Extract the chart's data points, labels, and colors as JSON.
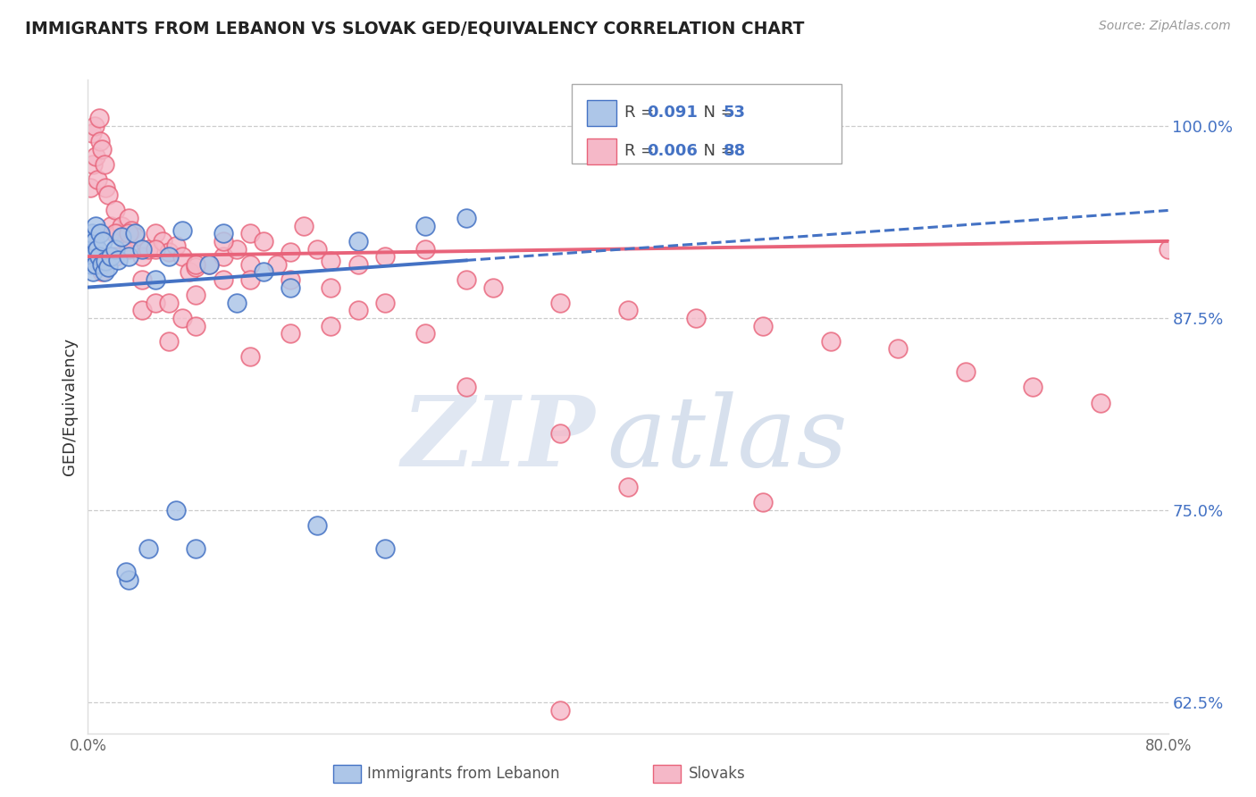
{
  "title": "IMMIGRANTS FROM LEBANON VS SLOVAK GED/EQUIVALENCY CORRELATION CHART",
  "source_text": "Source: ZipAtlas.com",
  "ylabel": "GED/Equivalency",
  "xlim": [
    0.0,
    80.0
  ],
  "ylim": [
    60.5,
    103.0
  ],
  "y_ticks": [
    62.5,
    75.0,
    87.5,
    100.0
  ],
  "blue_color": "#4472c4",
  "pink_color": "#e8637a",
  "blue_scatter_face": "#adc6e8",
  "pink_scatter_face": "#f5b8c8",
  "lebanon_x": [
    0.1,
    0.15,
    0.2,
    0.25,
    0.3,
    0.35,
    0.4,
    0.5,
    0.55,
    0.6,
    0.7,
    0.8,
    0.9,
    1.0,
    1.1,
    1.2,
    1.3,
    1.5,
    1.7,
    2.0,
    2.2,
    2.5,
    3.0,
    3.5,
    4.0,
    5.0,
    6.0,
    7.0,
    8.0,
    9.0,
    10.0,
    11.0,
    13.0,
    15.0,
    17.0,
    20.0,
    22.0,
    25.0,
    28.0,
    3.0,
    4.5,
    6.5,
    2.8
  ],
  "lebanon_y": [
    91.5,
    92.5,
    92.0,
    91.0,
    93.0,
    90.5,
    91.8,
    92.5,
    91.0,
    93.5,
    92.0,
    91.5,
    93.0,
    91.0,
    92.5,
    90.5,
    91.2,
    90.8,
    91.5,
    92.0,
    91.3,
    92.8,
    91.5,
    93.0,
    92.0,
    90.0,
    91.5,
    93.2,
    72.5,
    91.0,
    93.0,
    88.5,
    90.5,
    89.5,
    74.0,
    92.5,
    72.5,
    93.5,
    94.0,
    70.5,
    72.5,
    75.0,
    71.0
  ],
  "slovak_x": [
    0.2,
    0.3,
    0.4,
    0.5,
    0.6,
    0.7,
    0.8,
    0.9,
    1.0,
    1.2,
    1.3,
    1.5,
    1.7,
    2.0,
    2.2,
    2.5,
    2.8,
    3.0,
    3.2,
    3.5,
    4.0,
    4.5,
    5.0,
    5.5,
    6.0,
    6.5,
    7.0,
    7.5,
    8.0,
    9.0,
    10.0,
    11.0,
    12.0,
    13.0,
    14.0,
    15.0,
    16.0,
    17.0,
    18.0,
    20.0,
    22.0,
    25.0,
    28.0,
    30.0,
    35.0,
    40.0,
    45.0,
    50.0,
    55.0,
    60.0,
    65.0,
    70.0,
    75.0,
    80.0,
    1.5,
    2.0,
    3.0,
    4.0,
    5.0,
    6.0,
    7.0,
    8.0,
    10.0,
    12.0,
    15.0,
    20.0,
    4.0,
    6.0,
    8.0,
    10.0,
    12.0,
    15.0,
    18.0,
    22.0,
    28.0,
    35.0,
    40.0,
    50.0,
    35.0,
    25.0,
    18.0,
    12.0,
    8.0,
    5.0,
    3.0,
    2.0,
    1.0
  ],
  "slovak_y": [
    96.0,
    99.5,
    97.5,
    100.0,
    98.0,
    96.5,
    100.5,
    99.0,
    98.5,
    97.5,
    96.0,
    95.5,
    93.5,
    94.5,
    93.0,
    93.5,
    92.5,
    94.0,
    93.2,
    92.8,
    91.5,
    92.0,
    93.0,
    92.5,
    91.8,
    92.2,
    91.5,
    90.5,
    90.8,
    91.0,
    91.5,
    92.0,
    93.0,
    92.5,
    91.0,
    91.8,
    93.5,
    92.0,
    91.2,
    91.0,
    91.5,
    92.0,
    90.0,
    89.5,
    88.5,
    88.0,
    87.5,
    87.0,
    86.0,
    85.5,
    84.0,
    83.0,
    82.0,
    92.0,
    91.5,
    93.0,
    92.0,
    88.0,
    88.5,
    86.0,
    87.5,
    89.0,
    90.0,
    85.0,
    86.5,
    88.0,
    90.0,
    88.5,
    87.0,
    92.5,
    91.0,
    90.0,
    89.5,
    88.5,
    83.0,
    80.0,
    76.5,
    75.5,
    62.0,
    86.5,
    87.0,
    90.0,
    91.0,
    92.0,
    93.0,
    91.5,
    90.5
  ],
  "leb_trend_x0": 0.0,
  "leb_trend_y0": 89.5,
  "leb_trend_x1": 80.0,
  "leb_trend_y1": 94.5,
  "slo_trend_x0": 0.0,
  "slo_trend_y0": 91.5,
  "slo_trend_x1": 80.0,
  "slo_trend_y1": 92.5,
  "leb_data_max_x": 28.0,
  "watermark_zip_color": "#c8d4e8",
  "watermark_atlas_color": "#a8bcd8"
}
